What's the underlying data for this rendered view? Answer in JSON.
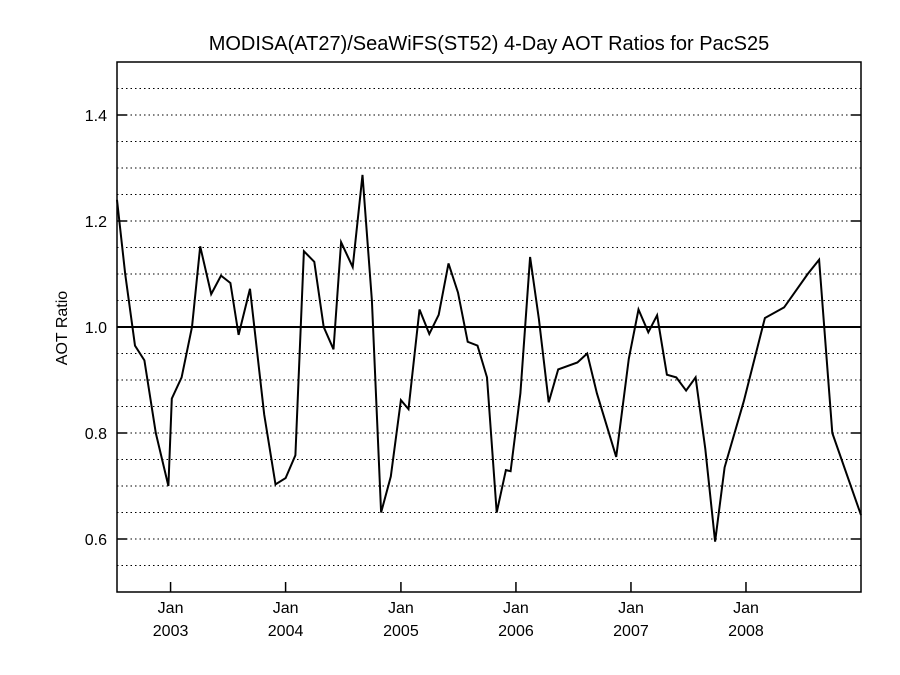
{
  "chart_data": {
    "type": "line",
    "title": "MODISA(AT27)/SeaWiFS(ST52) 4-Day AOT Ratios for PacS25",
    "xlabel": "",
    "ylabel": "AOT Ratio",
    "xlim": [
      "2002-07-15",
      "2008-12-31"
    ],
    "ylim": [
      0.5,
      1.5
    ],
    "grid": "dotted horizontal lines every 0.05",
    "reference_line": 1.0,
    "x_ticks": [
      {
        "date": "2003-01-01",
        "month": "Jan",
        "year": "2003"
      },
      {
        "date": "2004-01-01",
        "month": "Jan",
        "year": "2004"
      },
      {
        "date": "2005-01-01",
        "month": "Jan",
        "year": "2005"
      },
      {
        "date": "2006-01-01",
        "month": "Jan",
        "year": "2006"
      },
      {
        "date": "2007-01-01",
        "month": "Jan",
        "year": "2007"
      },
      {
        "date": "2008-01-01",
        "month": "Jan",
        "year": "2008"
      }
    ],
    "y_ticks": [
      {
        "value": 0.6,
        "label": "0.6"
      },
      {
        "value": 0.8,
        "label": "0.8"
      },
      {
        "value": 1.0,
        "label": "1.0"
      },
      {
        "value": 1.2,
        "label": "1.2"
      },
      {
        "value": 1.4,
        "label": "1.4"
      }
    ],
    "series": [
      {
        "name": "",
        "color": "#000000",
        "points": [
          [
            "2002-07-15",
            1.24
          ],
          [
            "2002-08-10",
            1.1
          ],
          [
            "2002-09-10",
            0.965
          ],
          [
            "2002-10-10",
            0.937
          ],
          [
            "2002-11-15",
            0.8
          ],
          [
            "2002-12-25",
            0.7
          ],
          [
            "2003-01-05",
            0.865
          ],
          [
            "2003-02-05",
            0.905
          ],
          [
            "2003-03-10",
            1.0
          ],
          [
            "2003-04-05",
            1.152
          ],
          [
            "2003-05-10",
            1.062
          ],
          [
            "2003-06-10",
            1.097
          ],
          [
            "2003-07-10",
            1.083
          ],
          [
            "2003-08-05",
            0.985
          ],
          [
            "2003-09-10",
            1.072
          ],
          [
            "2003-10-25",
            0.835
          ],
          [
            "2003-11-30",
            0.703
          ],
          [
            "2004-01-01",
            0.715
          ],
          [
            "2004-02-01",
            0.758
          ],
          [
            "2004-02-28",
            1.143
          ],
          [
            "2004-04-01",
            1.123
          ],
          [
            "2004-05-01",
            1.0
          ],
          [
            "2004-06-01",
            0.958
          ],
          [
            "2004-06-25",
            1.16
          ],
          [
            "2004-08-01",
            1.113
          ],
          [
            "2004-09-01",
            1.287
          ],
          [
            "2004-10-01",
            1.05
          ],
          [
            "2004-10-30",
            0.65
          ],
          [
            "2004-11-30",
            0.718
          ],
          [
            "2005-01-01",
            0.862
          ],
          [
            "2005-01-25",
            0.845
          ],
          [
            "2005-03-01",
            1.033
          ],
          [
            "2005-04-01",
            0.987
          ],
          [
            "2005-05-01",
            1.023
          ],
          [
            "2005-06-01",
            1.12
          ],
          [
            "2005-07-01",
            1.065
          ],
          [
            "2005-08-01",
            0.972
          ],
          [
            "2005-09-01",
            0.965
          ],
          [
            "2005-10-01",
            0.905
          ],
          [
            "2005-11-01",
            0.65
          ],
          [
            "2005-11-30",
            0.73
          ],
          [
            "2005-12-15",
            0.728
          ],
          [
            "2006-01-15",
            0.875
          ],
          [
            "2006-02-15",
            1.132
          ],
          [
            "2006-03-15",
            1.015
          ],
          [
            "2006-04-15",
            0.858
          ],
          [
            "2006-05-15",
            0.92
          ],
          [
            "2006-07-15",
            0.933
          ],
          [
            "2006-08-15",
            0.95
          ],
          [
            "2006-09-15",
            0.875
          ],
          [
            "2006-11-15",
            0.755
          ],
          [
            "2006-12-25",
            0.94
          ],
          [
            "2007-01-25",
            1.033
          ],
          [
            "2007-02-25",
            0.99
          ],
          [
            "2007-03-25",
            1.022
          ],
          [
            "2007-04-25",
            0.91
          ],
          [
            "2007-05-25",
            0.905
          ],
          [
            "2007-06-25",
            0.88
          ],
          [
            "2007-07-25",
            0.905
          ],
          [
            "2007-08-25",
            0.77
          ],
          [
            "2007-09-25",
            0.595
          ],
          [
            "2007-10-25",
            0.735
          ],
          [
            "2007-12-25",
            0.86
          ],
          [
            "2008-03-01",
            1.017
          ],
          [
            "2008-05-01",
            1.037
          ],
          [
            "2008-07-15",
            1.1
          ],
          [
            "2008-08-20",
            1.127
          ],
          [
            "2008-10-01",
            0.8
          ],
          [
            "2008-12-31",
            0.645
          ]
        ]
      }
    ]
  }
}
